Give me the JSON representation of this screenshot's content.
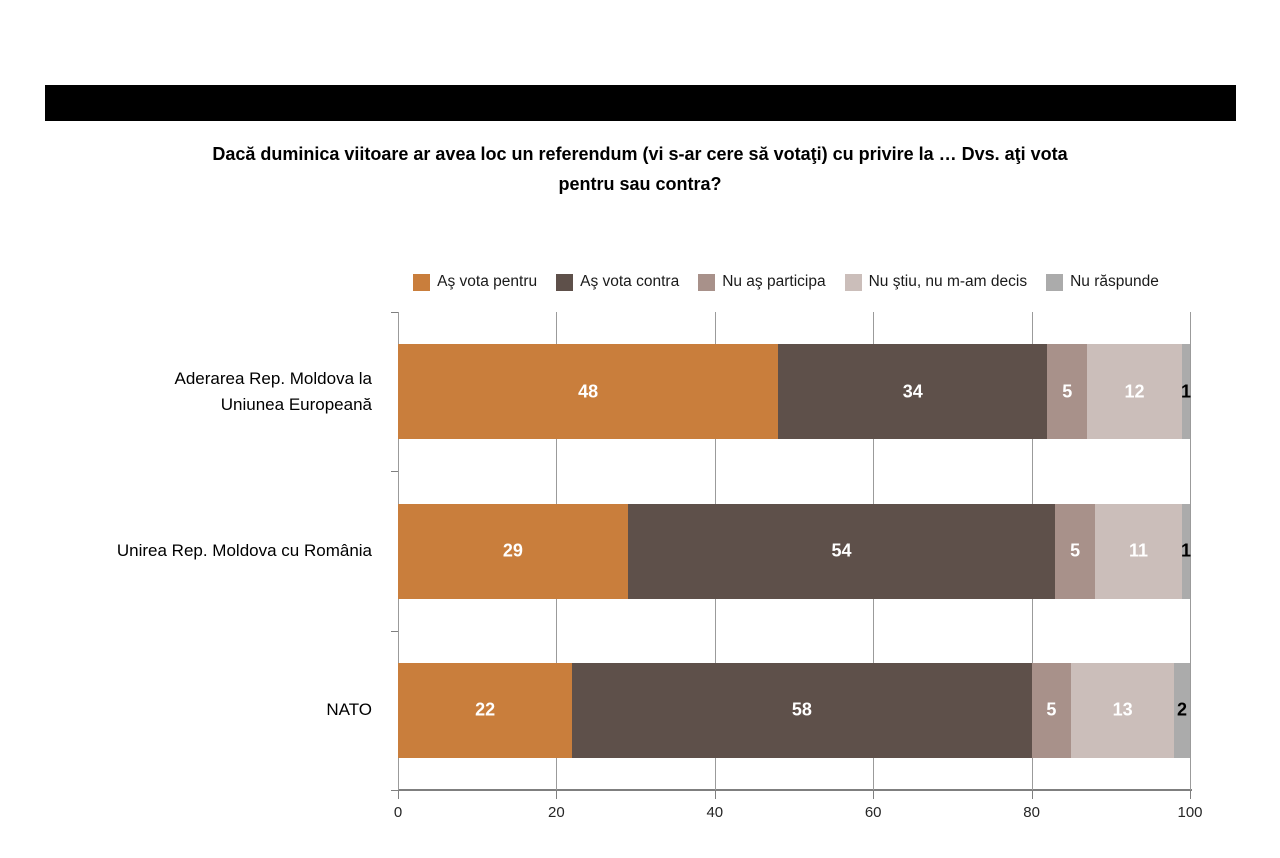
{
  "banner": {
    "color": "#000000"
  },
  "title": {
    "lines": [
      "Dacă duminica viitoare ar avea loc un referendum (vi s-ar cere să votaţi) cu privire la … Dvs. aţi vota",
      "pentru sau contra?"
    ]
  },
  "chart_data": {
    "type": "bar",
    "stacked": true,
    "orientation": "horizontal",
    "title": "Dacă duminica viitoare ar avea loc un referendum (vi s-ar cere să votaţi) cu privire la … Dvs. aţi vota pentru sau contra?",
    "categories": [
      "Aderarea Rep. Moldova la Uniunea Europeană",
      "Unirea Rep. Moldova cu România",
      "NATO"
    ],
    "category_label_lines": [
      [
        "Aderarea Rep. Moldova la",
        "Uniunea Europeană"
      ],
      [
        "Unirea Rep. Moldova cu România"
      ],
      [
        "NATO"
      ]
    ],
    "series": [
      {
        "name": "Aş vota pentru",
        "color": "#C97E3C",
        "label_color": "#ffffff",
        "values": [
          48,
          29,
          22
        ]
      },
      {
        "name": "Aş vota contra",
        "color": "#5E504A",
        "label_color": "#ffffff",
        "values": [
          34,
          54,
          58
        ]
      },
      {
        "name": "Nu aş participa",
        "color": "#A8918A",
        "label_color": "#ffffff",
        "values": [
          5,
          5,
          5
        ]
      },
      {
        "name": "Nu ştiu, nu m-am decis",
        "color": "#CBBEBA",
        "label_color": "#ffffff",
        "values": [
          12,
          11,
          13
        ]
      },
      {
        "name": "Nu răspunde",
        "color": "#ABABAB",
        "label_color": "#000000",
        "values": [
          1,
          1,
          2
        ]
      }
    ],
    "xlim": [
      0,
      100
    ],
    "x_ticks": [
      "0",
      "20",
      "40",
      "60",
      "80",
      "100"
    ],
    "grid": "vertical",
    "legend_position": "top",
    "axis_color": "#7F7F7F",
    "gridline_color": "#9B9B9B"
  }
}
